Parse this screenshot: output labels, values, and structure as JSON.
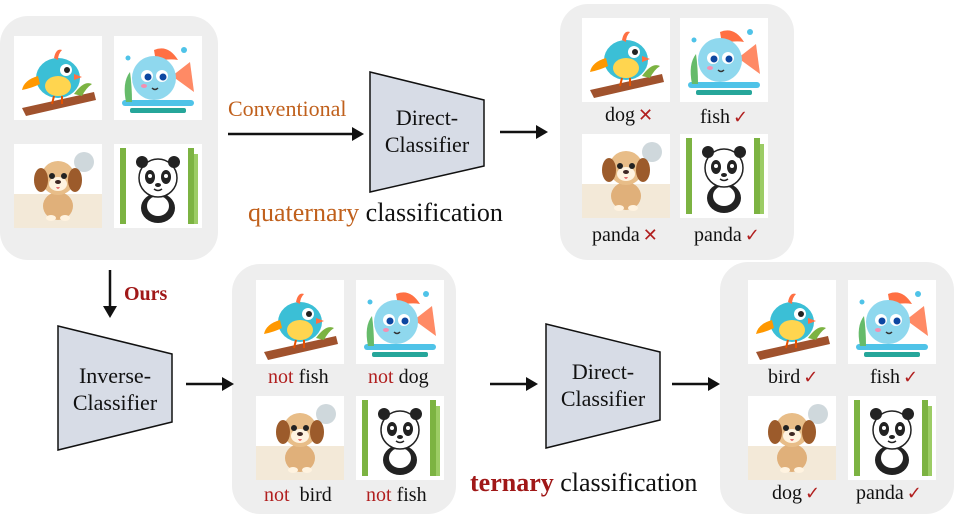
{
  "animals": {
    "bird": {
      "icon": "bird-icon",
      "color": "#3bbfd6"
    },
    "fish": {
      "icon": "fish-icon",
      "color": "#4fc3e8"
    },
    "dog": {
      "icon": "dog-icon",
      "color": "#c98a4b"
    },
    "panda": {
      "icon": "panda-icon",
      "color": "#222222"
    }
  },
  "conventional_label": "Conventional",
  "ours_label": "Ours",
  "direct_classifier_top": [
    "Direct-",
    "Classifier"
  ],
  "direct_classifier_bottom": [
    "Direct-",
    "Classifier"
  ],
  "inverse_classifier": [
    "Inverse-",
    "Classifier"
  ],
  "quaternary_caption": {
    "emph": "quaternary",
    "rest": " classification"
  },
  "ternary_caption": {
    "emph": "ternary",
    "rest": " classification"
  },
  "top_results": [
    {
      "label": "dog",
      "mark": "✕"
    },
    {
      "label": "fish",
      "mark": "✓"
    },
    {
      "label": "panda",
      "mark": "✕"
    },
    {
      "label": "panda",
      "mark": "✓"
    }
  ],
  "inverse_results": [
    {
      "neg": "not",
      "label": " fish"
    },
    {
      "neg": "not",
      "label": " dog"
    },
    {
      "neg": "not",
      "label": "  bird"
    },
    {
      "neg": "not",
      "label": " fish"
    }
  ],
  "bottom_results": [
    {
      "label": "bird",
      "mark": "✓"
    },
    {
      "label": "fish",
      "mark": "✓"
    },
    {
      "label": "dog",
      "mark": "✓"
    },
    {
      "label": "panda",
      "mark": "✓"
    }
  ],
  "colors": {
    "accent_red": "#a01818",
    "accent_orange": "#c0601c",
    "classifier_fill": "#d7dce6",
    "panel": "#eeeeee"
  }
}
